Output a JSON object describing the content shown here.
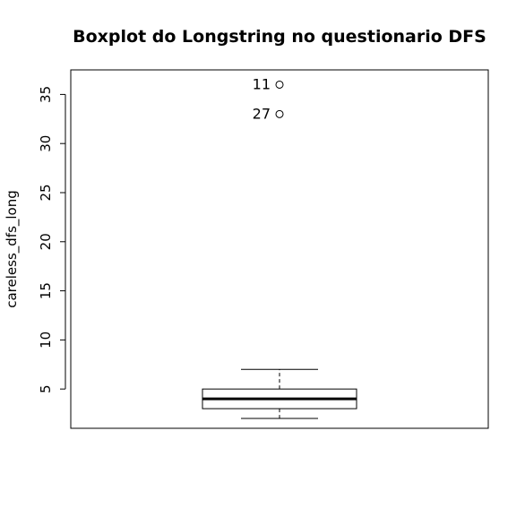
{
  "chart_data": {
    "type": "boxplot",
    "title": "Boxplot do Longstring no questionario DFS",
    "xlabel": "",
    "ylabel": "careless_dfs_long",
    "ylim": [
      1,
      37.5
    ],
    "yticks": [
      5,
      10,
      15,
      20,
      25,
      30,
      35
    ],
    "box": {
      "whisker_low": 2,
      "q1": 3,
      "median": 4,
      "q3": 5,
      "whisker_high": 7
    },
    "outliers": [
      {
        "label": "11",
        "value": 36
      },
      {
        "label": "27",
        "value": 33
      }
    ],
    "grid": false,
    "legend": "none"
  }
}
